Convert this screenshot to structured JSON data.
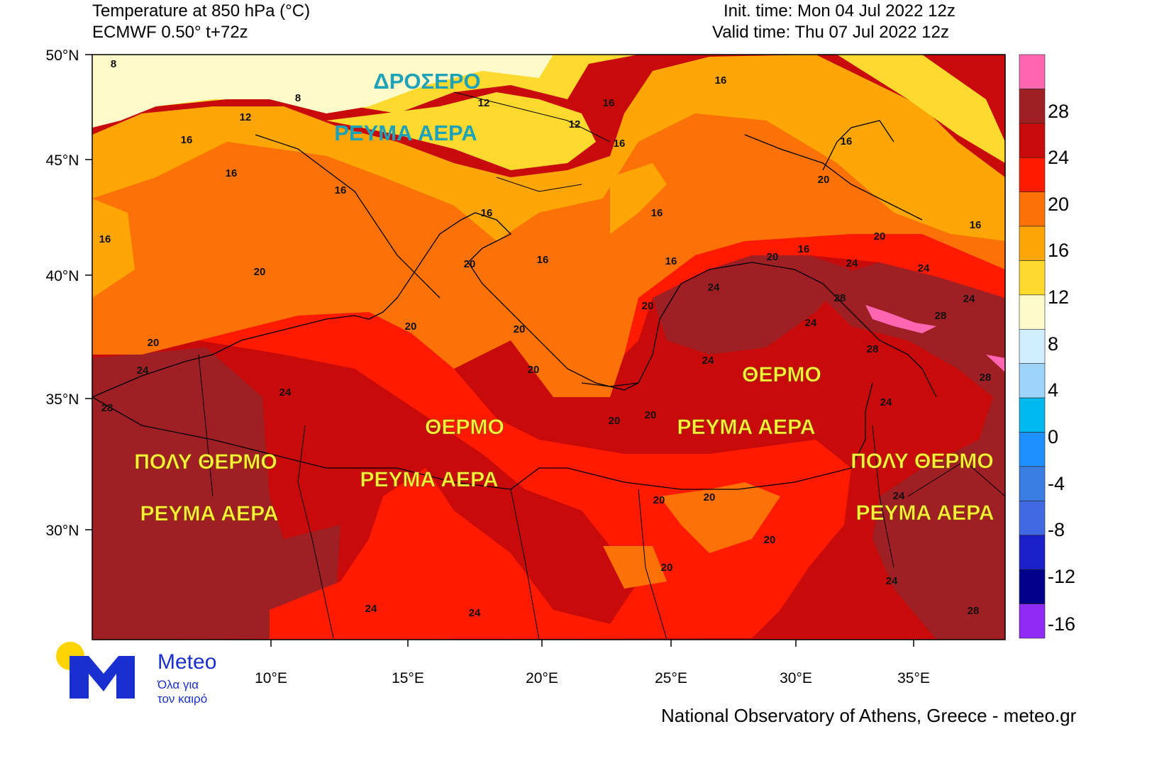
{
  "header": {
    "title_line1": "Temperature at 850 hPa (°C)",
    "title_line2": "ECMWF 0.50° t+72z",
    "init_time": "Init. time: Mon 04 Jul 2022 12z",
    "valid_time": "Valid time: Thu 07 Jul 2022 12z"
  },
  "axes": {
    "lat_labels": [
      "50°N",
      "45°N",
      "40°N",
      "35°N",
      "30°N"
    ],
    "lon_labels": [
      "10°E",
      "15°E",
      "20°E",
      "25°E",
      "30°E",
      "35°E"
    ]
  },
  "colorbar": {
    "levels": [
      {
        "label": "28",
        "color": "#9e1f24"
      },
      {
        "label": "24",
        "color": "#c80a0a"
      },
      {
        "label": "20",
        "color": "#ff1a00"
      },
      {
        "label": "16",
        "color": "#fd7206"
      },
      {
        "label": "12",
        "color": "#fda606"
      },
      {
        "label": "8",
        "color": "#fed92e"
      },
      {
        "label": "4",
        "color": "#fffac9"
      },
      {
        "label": "0",
        "color": "#cfefff"
      },
      {
        "label": "-4",
        "color": "#00b9ee"
      },
      {
        "label": "-8",
        "color": "#3a7ee4"
      },
      {
        "label": "-12",
        "color": "#1a20c8"
      },
      {
        "label": "-16",
        "color": "#00007a"
      }
    ],
    "top_color": "#ff66b2",
    "bottom_color": "#8f2bf5",
    "extra_colors": [
      "#9e1f24",
      "#c80a0a",
      "#ff1a00",
      "#fd7206",
      "#fda606",
      "#fed92e",
      "#fffac9",
      "#cfefff",
      "#9ed4fa",
      "#00b9ee",
      "#1e90ff",
      "#3a7ee4",
      "#4169e1",
      "#1a20c8",
      "#00008b"
    ]
  },
  "contour_labels": [
    "8",
    "8",
    "12",
    "12",
    "12",
    "16",
    "16",
    "16",
    "16",
    "16",
    "16",
    "16",
    "16",
    "16",
    "16",
    "16",
    "16",
    "20",
    "20",
    "20",
    "20",
    "20",
    "20",
    "20",
    "20",
    "20",
    "20",
    "20",
    "20",
    "20",
    "20",
    "20",
    "20",
    "24",
    "24",
    "24",
    "24",
    "24",
    "24",
    "24",
    "24",
    "24",
    "24",
    "24",
    "24",
    "24",
    "28",
    "28",
    "28",
    "28",
    "28",
    "28"
  ],
  "annotations": {
    "teal": [
      "ΔΡΟΣΕΡΟ",
      "ΡΕΥΜΑ ΑΕΡΑ"
    ],
    "yellow": [
      "ΘΕΡΜΟ",
      "ΡΕΥΜΑ ΑΕΡΑ",
      "ΘΕΡΜΟ",
      "ΡΕΥΜΑ ΑΕΡΑ",
      "ΠΟΛΥ ΘΕΡΜΟ",
      "ΡΕΥΜΑ ΑΕΡΑ",
      "ΠΟΛΥ ΘΕΡΜΟ",
      "ΡΕΥΜΑ ΑΕΡΑ"
    ]
  },
  "logo": {
    "brand": "Meteo",
    "tagline1": "Όλα για",
    "tagline2": "τον καιρό",
    "icon": "meteo-m-sun-logo"
  },
  "footer": {
    "credit": "National Observatory of Athens, Greece - meteo.gr"
  }
}
